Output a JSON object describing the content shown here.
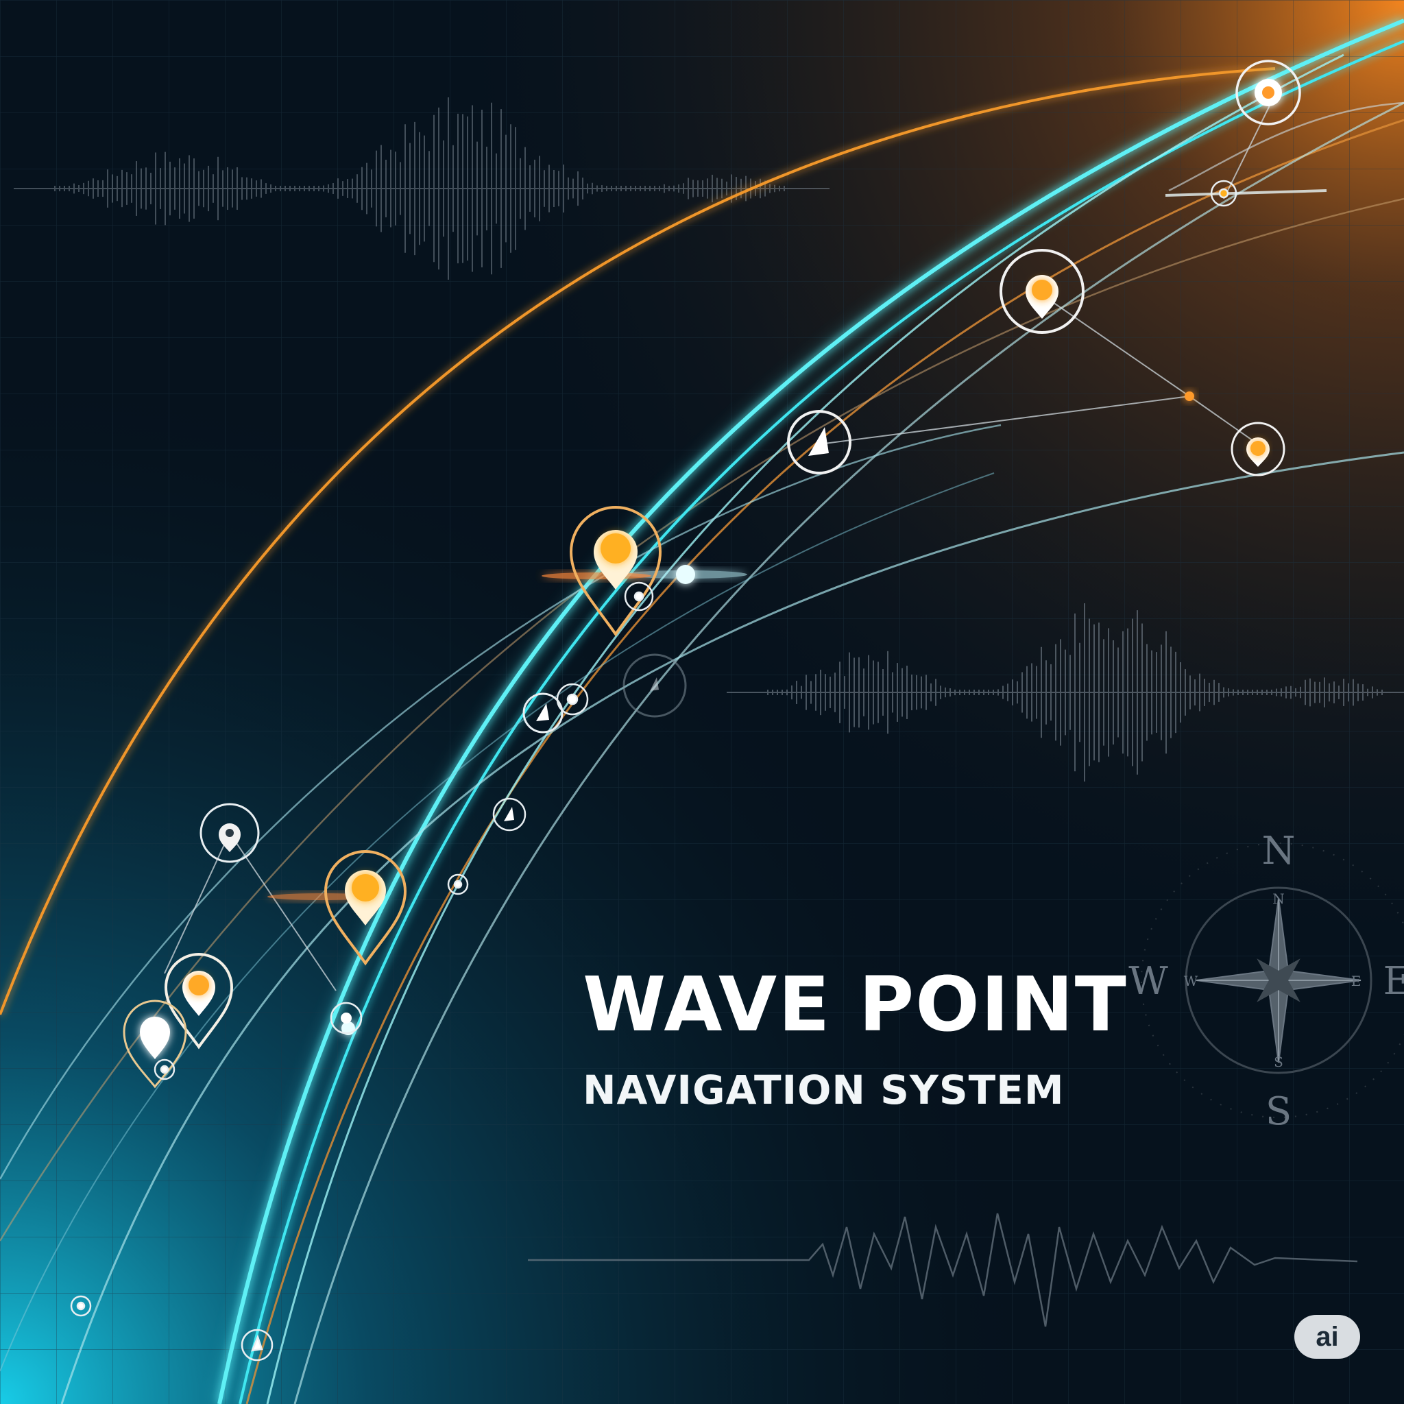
{
  "title": "WAVE POINT",
  "subtitle": "NAVIGATION SYSTEM",
  "compass": {
    "outer": {
      "n": "N",
      "s": "S",
      "e": "E",
      "w": "W"
    },
    "inner": {
      "n": "N",
      "s": "S",
      "e": "E",
      "w": "W"
    }
  },
  "badge": "ai",
  "colors": {
    "background": "#06121d",
    "cyan": "#41e6f0",
    "orange": "#f0962a",
    "marker": "#ffb020",
    "text": "#ffffff"
  },
  "icons": [
    "location-pin-icon",
    "navigation-arrow-icon",
    "compass-rose-icon",
    "waveform-icon"
  ]
}
